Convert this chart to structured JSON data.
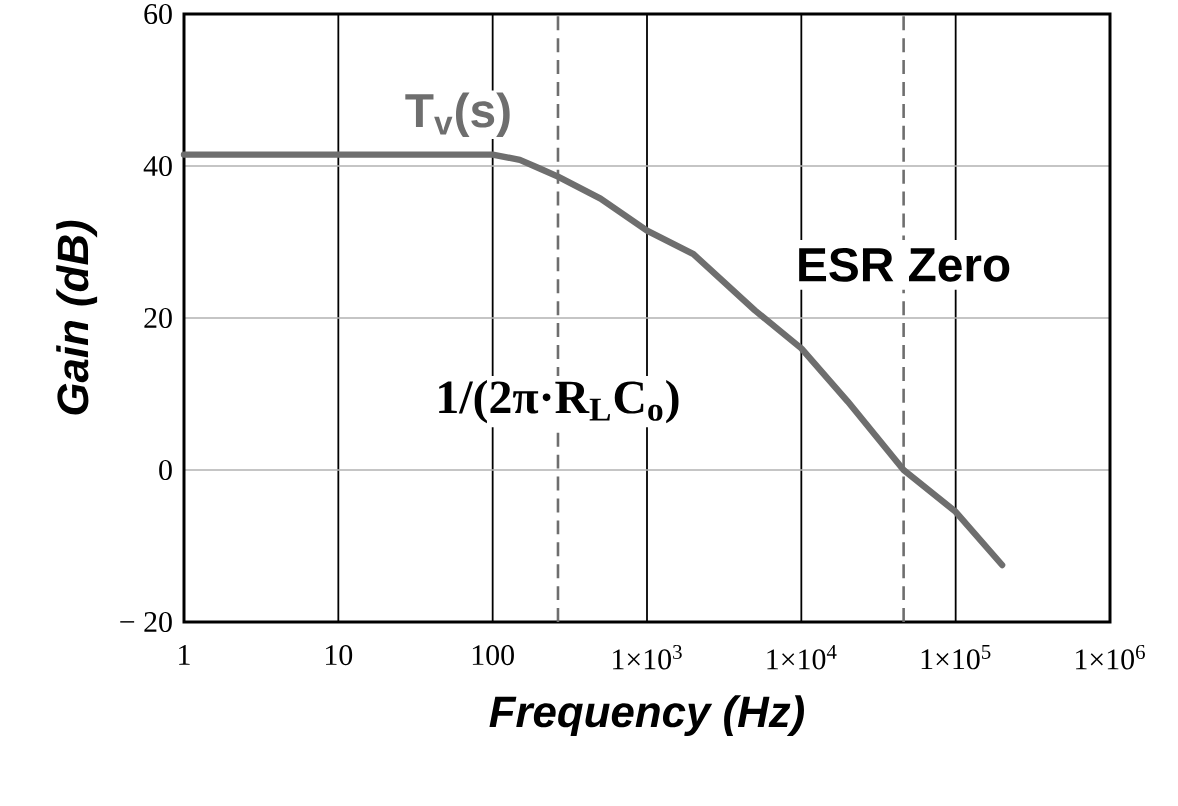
{
  "chart_data": {
    "type": "line",
    "xlabel": "Frequency (Hz)",
    "ylabel": "Gain (dB)",
    "log": "x",
    "xlim": [
      1,
      1000000
    ],
    "ylim": [
      -20,
      60
    ],
    "xticks": [
      1,
      10,
      100,
      {
        "value": 1000,
        "label": "1×10$^{3}$"
      },
      {
        "value": 10000,
        "label": "1×10$^{4}$"
      },
      {
        "value": 100000,
        "label": "1×10$^{5}$"
      },
      {
        "value": 1000000,
        "label": "1×10$^{6}$"
      }
    ],
    "yticks": [
      {
        "value": -20,
        "label": "− 20"
      },
      0,
      20,
      40,
      60
    ],
    "grid": true,
    "marker": "none",
    "line_style": "solid",
    "series": [
      {
        "name": "T$_{v}$(s)",
        "color": "#6e6e6e",
        "x": [
          1,
          10,
          100,
          150,
          200,
          265,
          500,
          1000,
          2000,
          5000,
          10000,
          20000,
          46000,
          100000,
          200000
        ],
        "values": [
          41.5,
          41.5,
          41.5,
          40.8,
          39.7,
          38.6,
          35.7,
          31.5,
          28.4,
          21,
          16,
          9,
          0,
          -5.5,
          -12.5
        ]
      }
    ],
    "ref_lines": [
      {
        "axis": "x",
        "value": 265,
        "label": "1/(2π·R$_{L}$C$_{o}$)",
        "line_style": "dashed",
        "color": "#6e6e6e"
      },
      {
        "axis": "x",
        "value": 46000,
        "label": "ESR Zero",
        "line_style": "dashed",
        "color": "#6e6e6e"
      }
    ]
  }
}
